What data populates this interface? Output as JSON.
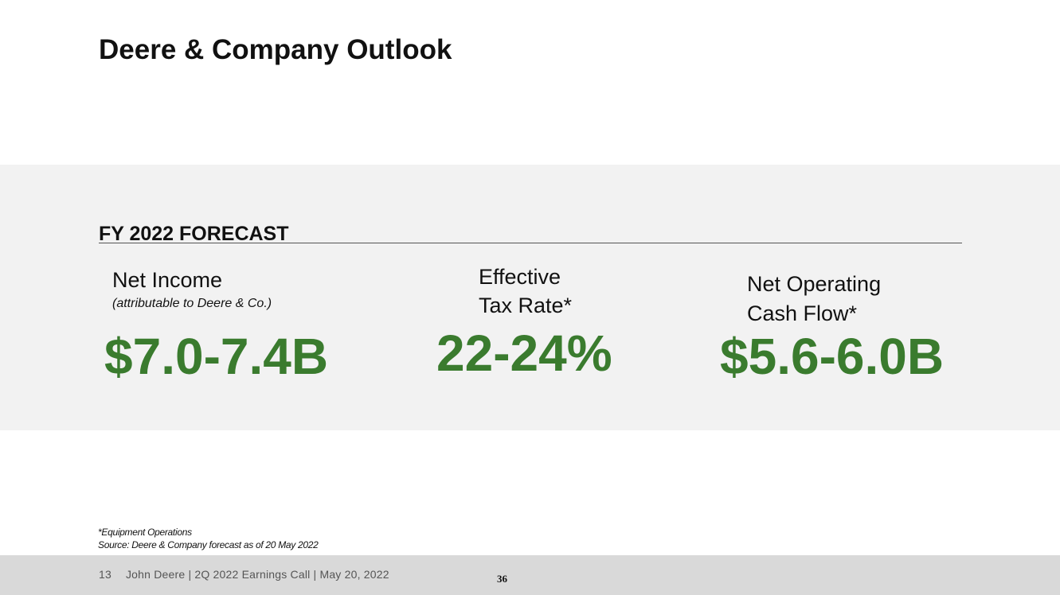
{
  "slide": {
    "title": "Deere & Company Outlook"
  },
  "forecast": {
    "heading": "FY 2022 FORECAST",
    "metrics": [
      {
        "label_line1": "Net Income",
        "sublabel": "(attributable to Deere & Co.)",
        "value": "$7.0-7.4B"
      },
      {
        "label_line1": "Effective",
        "label_line2": "Tax Rate*",
        "value": "22-24%"
      },
      {
        "label_line1": "Net Operating",
        "label_line2": "Cash Flow*",
        "value": "$5.6-6.0B"
      }
    ],
    "value_color": "#3a7b2e"
  },
  "footnotes": {
    "line1": "*Equipment Operations",
    "line2": "Source: Deere & Company forecast as of 20 May 2022"
  },
  "footer": {
    "slide_number": "13",
    "text": "John Deere | 2Q 2022 Earnings Call | May 20, 2022",
    "page_number": "36"
  }
}
